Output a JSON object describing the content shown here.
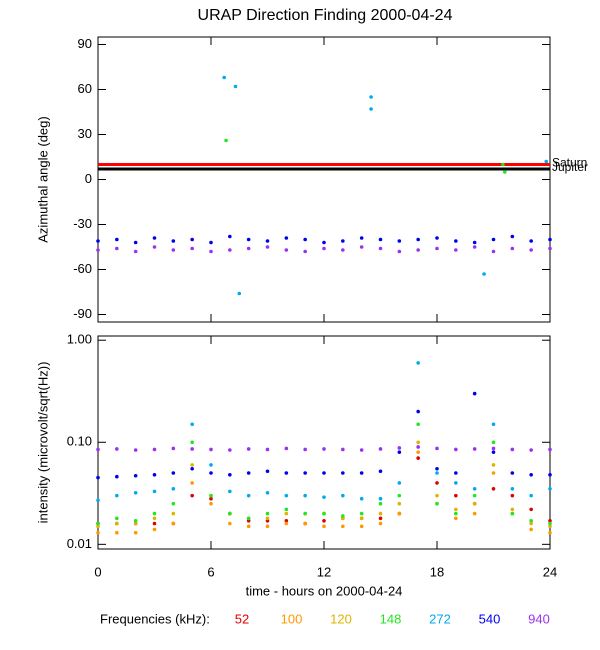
{
  "chart_data": [
    {
      "type": "scatter",
      "title": "URAP Direction Finding  2000-04-24",
      "ylabel": "Azimuthal angle (deg)",
      "xlim": [
        0,
        24
      ],
      "xticks": [
        0,
        6,
        12,
        18,
        24
      ],
      "ylim": [
        -95,
        95
      ],
      "yticks": [
        90,
        60,
        30,
        0,
        -30,
        -60,
        -90
      ],
      "reference_lines": [
        {
          "name": "Saturn",
          "value": 10,
          "color": "#ff0000"
        },
        {
          "name": "Jupiter",
          "value": 7,
          "color": "#000000"
        }
      ],
      "series": [
        {
          "name": "940",
          "color": "#9933ee",
          "x": [
            0,
            1,
            2,
            3,
            4,
            5,
            6,
            7,
            8,
            9,
            10,
            11,
            12,
            13,
            14,
            15,
            16,
            17,
            18,
            19,
            20,
            21,
            22,
            23,
            24
          ],
          "values": [
            -47,
            -46,
            -48,
            -45,
            -47,
            -46,
            -48,
            -47,
            -46,
            -45,
            -47,
            -48,
            -46,
            -47,
            -45,
            -46,
            -48,
            -47,
            -46,
            -47,
            -45,
            -48,
            -46,
            -47,
            -46
          ]
        },
        {
          "name": "540",
          "color": "#0000ee",
          "x": [
            0,
            1,
            2,
            3,
            4,
            5,
            6,
            7,
            8,
            9,
            10,
            11,
            12,
            13,
            14,
            15,
            16,
            17,
            18,
            19,
            20,
            21,
            22,
            23,
            24
          ],
          "values": [
            -41,
            -40,
            -42,
            -39,
            -41,
            -40,
            -42,
            -38,
            -40,
            -41,
            -39,
            -40,
            -42,
            -41,
            -39,
            -40,
            -41,
            -40,
            -39,
            -41,
            -42,
            -40,
            -38,
            -41,
            -40
          ]
        },
        {
          "name": "148",
          "color": "#22e622",
          "x": [
            6.8,
            21.5,
            21.6
          ],
          "values": [
            26,
            10,
            5
          ]
        },
        {
          "name": "272",
          "color": "#00aaee",
          "x": [
            7.3,
            6.7,
            14.5,
            14.5,
            7.5,
            20.5,
            23.8
          ],
          "values": [
            62,
            68,
            55,
            47,
            -76,
            -63,
            12
          ]
        }
      ]
    },
    {
      "type": "scatter",
      "log_y": true,
      "xlabel": "time - hours on 2000-04-24",
      "ylabel": "intensity (microvolt/sqrt(Hz))",
      "legend_title": "Frequencies (kHz):",
      "xlim": [
        0,
        24
      ],
      "xticks": [
        0,
        6,
        12,
        18,
        24
      ],
      "ylim": [
        0.009,
        1.1
      ],
      "yticks": [
        0.01,
        {
          "value": 0.1,
          "label": "0.10"
        },
        {
          "value": 1,
          "label": "1.00"
        }
      ],
      "x": [
        0,
        1,
        2,
        3,
        4,
        5,
        6,
        7,
        8,
        9,
        10,
        11,
        12,
        13,
        14,
        15,
        16,
        17,
        18,
        19,
        20,
        21,
        22,
        23,
        24
      ],
      "series": [
        {
          "name": "52",
          "color": "#e00000",
          "values": [
            0.016,
            0.016,
            0.016,
            0.016,
            0.016,
            0.03,
            0.028,
            0.02,
            0.017,
            0.017,
            0.017,
            0.016,
            0.017,
            0.018,
            0.018,
            0.018,
            0.02,
            0.07,
            0.04,
            0.03,
            0.025,
            0.035,
            0.03,
            0.022,
            0.017
          ]
        },
        {
          "name": "100",
          "color": "#ff9900",
          "values": [
            0.013,
            0.013,
            0.013,
            0.014,
            0.016,
            0.04,
            0.025,
            0.016,
            0.015,
            0.015,
            0.016,
            0.016,
            0.015,
            0.015,
            0.015,
            0.016,
            0.02,
            0.08,
            0.025,
            0.018,
            0.02,
            0.05,
            0.02,
            0.014,
            0.013
          ]
        },
        {
          "name": "120",
          "color": "#ddb400",
          "values": [
            0.015,
            0.016,
            0.016,
            0.018,
            0.02,
            0.06,
            0.03,
            0.02,
            0.018,
            0.018,
            0.02,
            0.02,
            0.02,
            0.018,
            0.018,
            0.02,
            0.025,
            0.1,
            0.03,
            0.022,
            0.025,
            0.06,
            0.022,
            0.016,
            0.015
          ]
        },
        {
          "name": "148",
          "color": "#22e622",
          "values": [
            0.016,
            0.018,
            0.017,
            0.02,
            0.025,
            0.1,
            0.03,
            0.02,
            0.018,
            0.02,
            0.022,
            0.02,
            0.02,
            0.019,
            0.02,
            0.025,
            0.03,
            0.15,
            0.025,
            0.02,
            0.03,
            0.1,
            0.02,
            0.017,
            0.016
          ]
        },
        {
          "name": "272",
          "color": "#00aaee",
          "values": [
            0.027,
            0.03,
            0.032,
            0.033,
            0.035,
            0.15,
            0.06,
            0.033,
            0.03,
            0.032,
            0.03,
            0.03,
            0.029,
            0.03,
            0.028,
            0.028,
            0.04,
            0.6,
            0.05,
            0.04,
            0.035,
            0.15,
            0.035,
            0.03,
            0.035
          ]
        },
        {
          "name": "540",
          "color": "#0000ee",
          "values": [
            0.045,
            0.046,
            0.047,
            0.048,
            0.05,
            0.055,
            0.05,
            0.048,
            0.05,
            0.052,
            0.05,
            0.05,
            0.05,
            0.05,
            0.05,
            0.052,
            0.08,
            0.2,
            0.055,
            0.05,
            0.3,
            0.08,
            0.05,
            0.048,
            0.048
          ]
        },
        {
          "name": "940",
          "color": "#9933ee",
          "values": [
            0.085,
            0.086,
            0.084,
            0.085,
            0.087,
            0.086,
            0.085,
            0.084,
            0.086,
            0.085,
            0.087,
            0.085,
            0.086,
            0.085,
            0.084,
            0.086,
            0.088,
            0.09,
            0.087,
            0.085,
            0.086,
            0.087,
            0.085,
            0.084,
            0.085
          ]
        }
      ]
    }
  ]
}
